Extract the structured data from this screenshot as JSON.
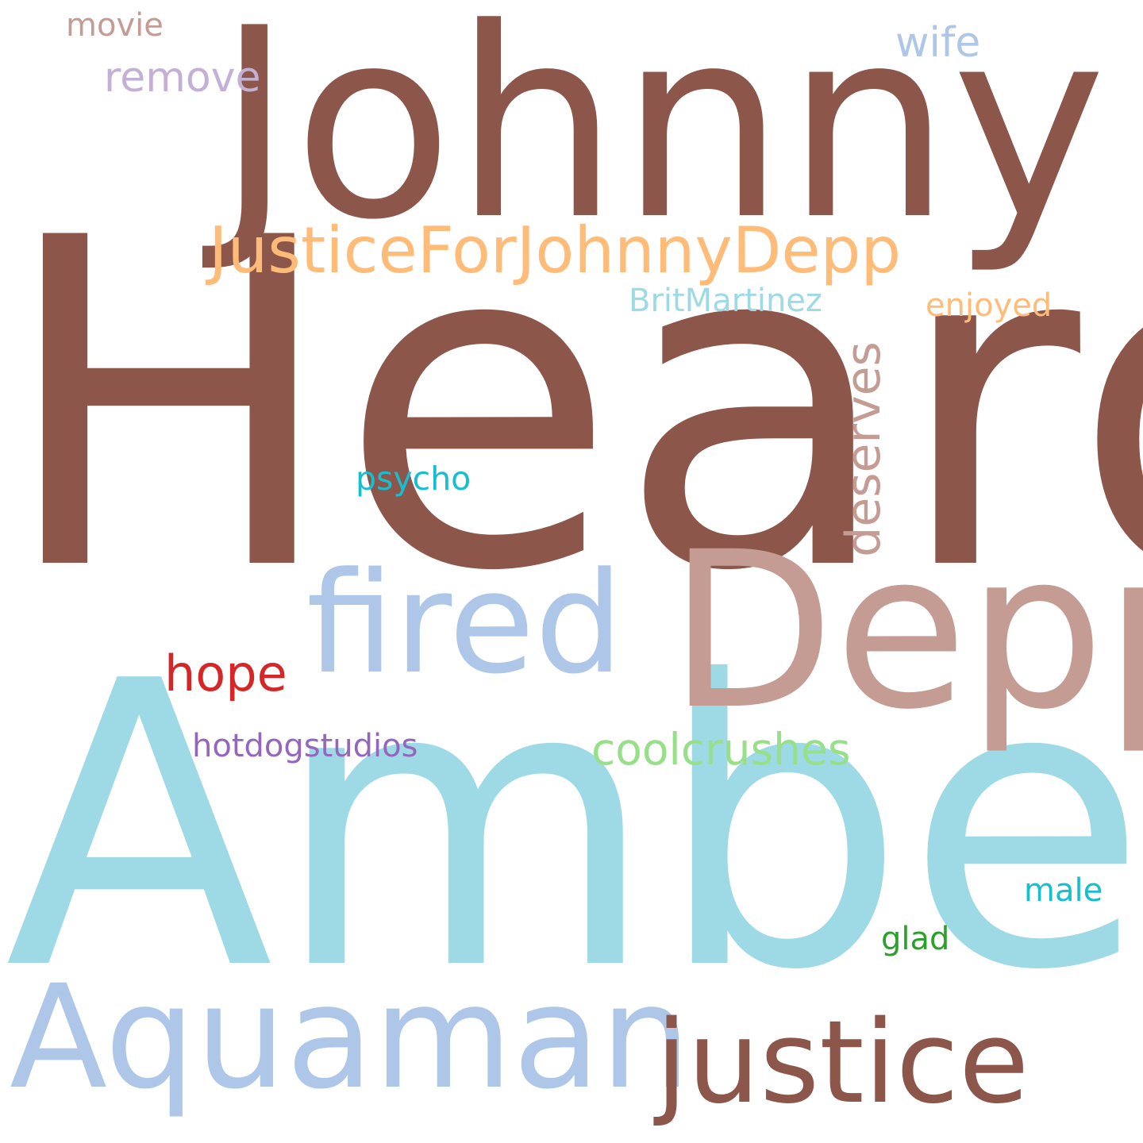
{
  "words": [
    {
      "text": "Heard",
      "color": "#8c564b"
    },
    {
      "text": "Johnny",
      "color": "#8c564b"
    },
    {
      "text": "Amber",
      "color": "#9edae5"
    },
    {
      "text": "Depp",
      "color": "#c49c94"
    },
    {
      "text": "fired",
      "color": "#aec7e8"
    },
    {
      "text": "Aquaman",
      "color": "#aec7e8"
    },
    {
      "text": "justice",
      "color": "#8c564b"
    },
    {
      "text": "JusticeForJohnnyDepp",
      "color": "#ffbb78"
    },
    {
      "text": "deserves",
      "color": "#c49c94"
    },
    {
      "text": "coolcrushes",
      "color": "#98df8a"
    },
    {
      "text": "hope",
      "color": "#d62728"
    },
    {
      "text": "remove",
      "color": "#c5b0d5"
    },
    {
      "text": "wife",
      "color": "#aec7e8"
    },
    {
      "text": "enjoyed",
      "color": "#ffbb78"
    },
    {
      "text": "BritMartinez",
      "color": "#9edae5"
    },
    {
      "text": "psycho",
      "color": "#17becf"
    },
    {
      "text": "hotdogstudios",
      "color": "#9467bd"
    },
    {
      "text": "movie",
      "color": "#c49c94"
    },
    {
      "text": "male",
      "color": "#17becf"
    },
    {
      "text": "glad",
      "color": "#2ca02c"
    }
  ]
}
